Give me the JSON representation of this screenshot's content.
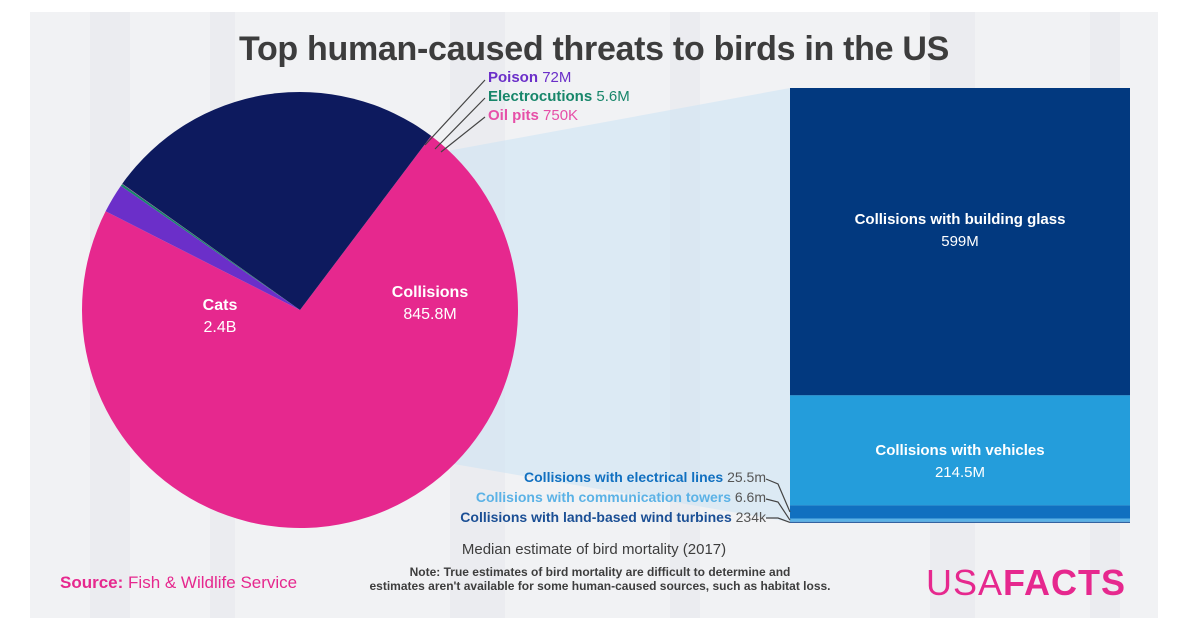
{
  "title": "Top human-caused threats to birds in the US",
  "colors": {
    "cats": "#e6288e",
    "collisions": "#0d1a5e",
    "poison": "#6b2fc9",
    "electrocutions": "#17866a",
    "oil_pits": "#e64fa8",
    "building_glass": "#02397f",
    "vehicles": "#249ddb",
    "electrical_lines": "#1170c0",
    "communication_towers": "#5bb2e6",
    "wind_turbines": "#1b4f95",
    "brand": "#e6288e"
  },
  "chart_data": [
    {
      "type": "pie",
      "categories": [
        "Cats",
        "Collisions",
        "Poison",
        "Electrocutions",
        "Oil pits"
      ],
      "values": [
        2400,
        845.8,
        72,
        5.6,
        0.75
      ],
      "value_unit": "million birds",
      "value_labels": [
        "2.4B",
        "845.8M",
        "72M",
        "5.6M",
        "750K"
      ]
    },
    {
      "type": "bar",
      "stacked": true,
      "categories": [
        "Collisions with building glass",
        "Collisions with vehicles",
        "Collisions with electrical lines",
        "Collisions with communication towers",
        "Collisions with land-based wind turbines"
      ],
      "values": [
        599,
        214.5,
        25.5,
        6.6,
        0.234
      ],
      "value_unit": "million birds",
      "value_labels": [
        "599M",
        "214.5M",
        "25.5m",
        "6.6m",
        "234k"
      ]
    }
  ],
  "caption": "Median estimate of bird mortality (2017)",
  "note_line1": "Note: True estimates of bird mortality are difficult to determine and",
  "note_line2": "estimates aren't available for some human-caused sources, such as habitat loss.",
  "source_label": "Source:",
  "source_value": "Fish & Wildlife Service",
  "brand_part1": "USA",
  "brand_part2": "FACTS"
}
